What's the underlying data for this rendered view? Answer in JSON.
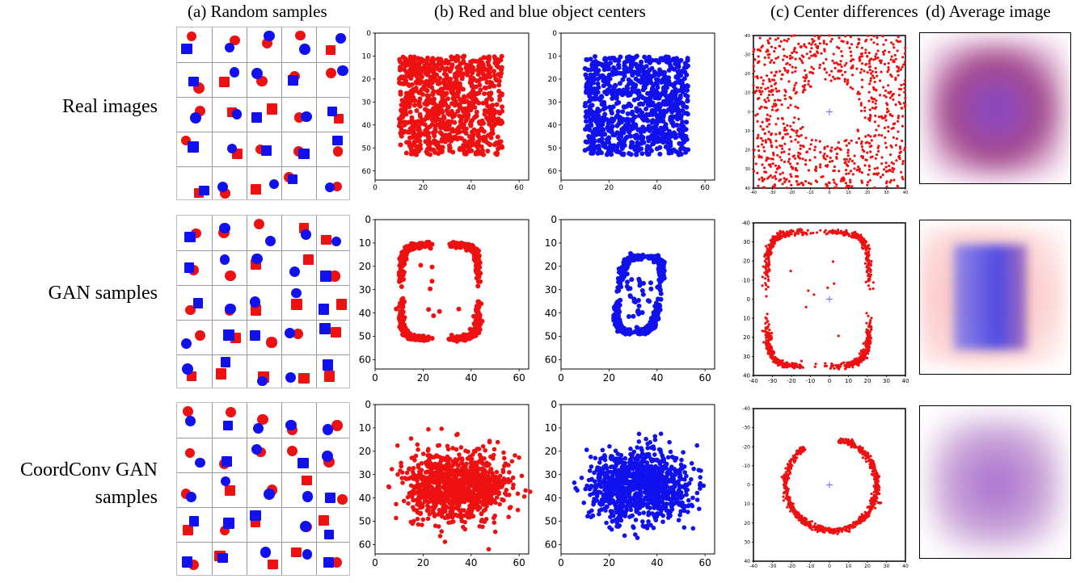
{
  "column_headers": [
    "(a) Random samples",
    "(b) Red and blue object centers",
    "(c) Center differences",
    "(d) Average image"
  ],
  "row_labels": [
    {
      "lines": [
        "Real images"
      ]
    },
    {
      "lines": [
        "GAN samples"
      ]
    },
    {
      "lines": [
        "CoordConv GAN",
        "samples"
      ]
    }
  ],
  "colors": {
    "red": "#ee1111",
    "blue": "#1111ee",
    "cross": "#6a6aff"
  },
  "center_axes": {
    "xlim": [
      0,
      64
    ],
    "ylim": [
      64,
      0
    ],
    "xticks": [
      "0",
      "20",
      "40",
      "60"
    ],
    "yticks": [
      "0",
      "10",
      "20",
      "30",
      "40",
      "50",
      "60"
    ]
  },
  "diff_axes": {
    "xlim": [
      -40,
      40
    ],
    "ylim": [
      40,
      -40
    ],
    "xticks": [
      "-40",
      "-30",
      "-20",
      "-10",
      "0",
      "10",
      "20",
      "30",
      "40"
    ],
    "yticks": [
      "-40",
      "-30",
      "-20",
      "-10",
      "0",
      "10",
      "20",
      "30",
      "40"
    ]
  },
  "chart_data": [
    {
      "type": "scatter",
      "row": "Real images",
      "panel": "red object centers",
      "distribution": "uniform square",
      "x_range": [
        10,
        53
      ],
      "y_range": [
        10,
        53
      ],
      "color": "red"
    },
    {
      "type": "scatter",
      "row": "Real images",
      "panel": "blue object centers",
      "distribution": "uniform square",
      "x_range": [
        10,
        53
      ],
      "y_range": [
        10,
        53
      ],
      "color": "blue"
    },
    {
      "type": "scatter",
      "row": "Real images",
      "panel": "center differences",
      "distribution": "annulus excluding center",
      "inner_radius": 16,
      "outer_extent": 40
    },
    {
      "type": "scatter",
      "row": "GAN samples",
      "panel": "red object centers",
      "distribution": "closed loop",
      "x_range": [
        10,
        44
      ],
      "y_range": [
        11,
        52
      ]
    },
    {
      "type": "scatter",
      "row": "GAN samples",
      "panel": "blue object centers",
      "distribution": "closed loop",
      "x_range": [
        23,
        42
      ],
      "y_range": [
        16,
        48
      ]
    },
    {
      "type": "scatter",
      "row": "GAN samples",
      "panel": "center differences",
      "distribution": "closed loop",
      "x_range": [
        -33,
        22
      ],
      "y_range": [
        -36,
        36
      ]
    },
    {
      "type": "scatter",
      "row": "CoordConv GAN samples",
      "panel": "red object centers",
      "distribution": "two lobes",
      "x_range": [
        12,
        56
      ],
      "y_range": [
        16,
        52
      ]
    },
    {
      "type": "scatter",
      "row": "CoordConv GAN samples",
      "panel": "blue object centers",
      "distribution": "two lobes",
      "x_range": [
        10,
        55
      ],
      "y_range": [
        16,
        53
      ]
    },
    {
      "type": "scatter",
      "row": "CoordConv GAN samples",
      "panel": "center differences",
      "distribution": "open arc",
      "x_range": [
        -25,
        27
      ],
      "y_range": [
        -25,
        25
      ]
    }
  ]
}
